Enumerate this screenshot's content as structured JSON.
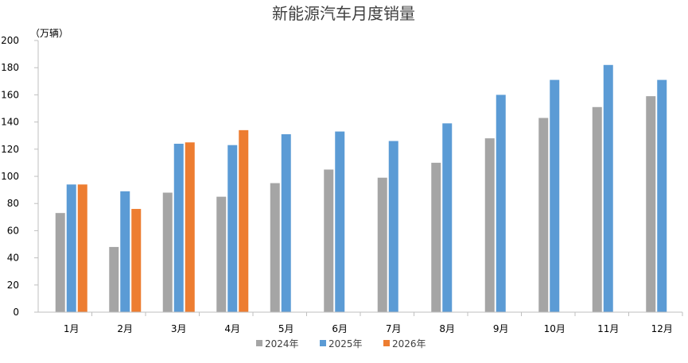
{
  "chart_data": {
    "type": "bar",
    "title": "新能源汽车月度销量",
    "unit_label": "（万辆）",
    "categories": [
      "1月",
      "2月",
      "3月",
      "4月",
      "5月",
      "6月",
      "7月",
      "8月",
      "9月",
      "10月",
      "11月",
      "12月"
    ],
    "series": [
      {
        "name": "2024年",
        "color": "#a5a5a5",
        "values": [
          73,
          48,
          88,
          85,
          95,
          105,
          99,
          110,
          128,
          143,
          151,
          159
        ]
      },
      {
        "name": "2025年",
        "color": "#5b9bd5",
        "values": [
          94,
          89,
          124,
          123,
          131,
          133,
          126,
          139,
          160,
          171,
          182,
          171
        ]
      },
      {
        "name": "2026年",
        "color": "#ed7d31",
        "values": [
          94,
          76,
          125,
          134,
          null,
          null,
          null,
          null,
          null,
          null,
          null,
          null
        ]
      }
    ],
    "ylim": [
      0,
      200
    ],
    "yticks": [
      "0",
      "20",
      "40",
      "60",
      "80",
      "100",
      "120",
      "140",
      "160",
      "180",
      "200"
    ],
    "grid": false,
    "legend_position": "bottom"
  }
}
